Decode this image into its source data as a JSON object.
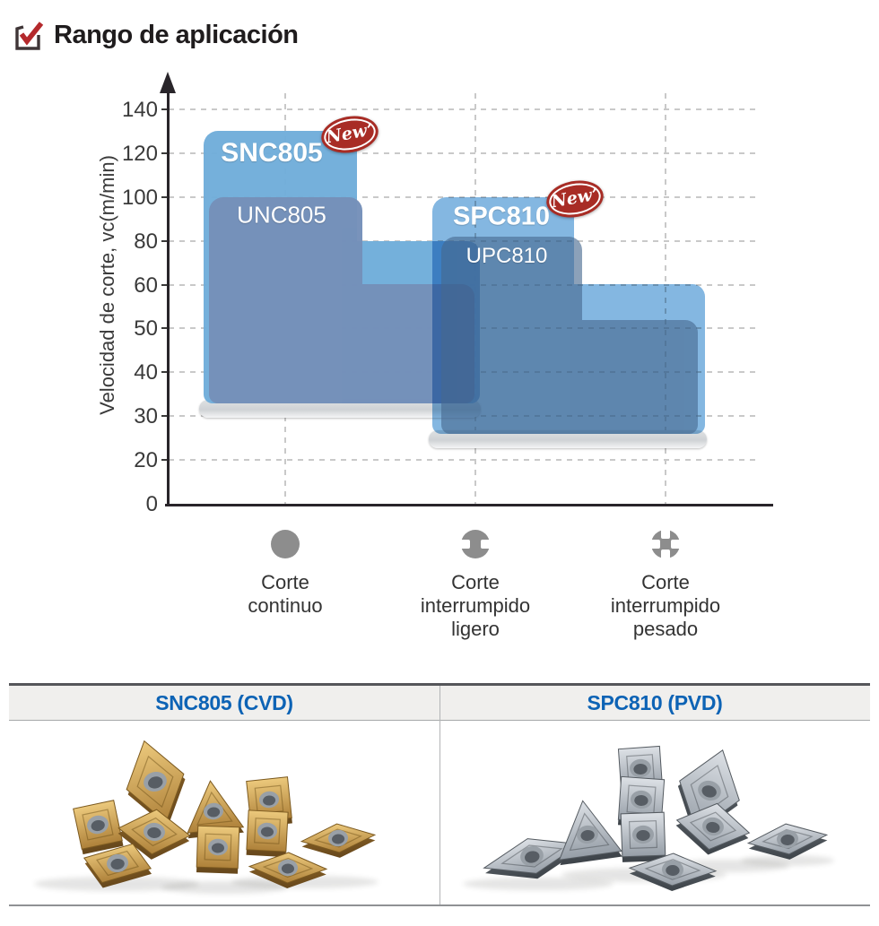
{
  "page": {
    "title": "Rango de aplicación"
  },
  "icons": {
    "title_icon": "checkbox-with-red-check-icon",
    "title_check_color": "#b4292c",
    "title_box_color": "#3f3537"
  },
  "chart_data": {
    "type": "step-range-area",
    "title": "Rango de aplicación",
    "ylabel": "Velocidad de corte, vc(m/min)",
    "yticks": [
      0,
      20,
      30,
      40,
      50,
      60,
      80,
      100,
      120,
      140
    ],
    "grid": true,
    "categories": [
      {
        "id": "continuo",
        "label": "Corte\ncontinuo",
        "icon": "continuous-cutting-icon"
      },
      {
        "id": "ligero",
        "label": "Corte\ninterrumpido\nligero",
        "icon": "light-interrupted-cutting-icon"
      },
      {
        "id": "pesado",
        "label": "Corte\ninterrumpido\npesado",
        "icon": "heavy-interrupted-cutting-icon"
      }
    ],
    "series": [
      {
        "name": "SNC805",
        "is_new": true,
        "color": "#6fadda",
        "ranges": {
          "continuo": 130,
          "ligero": 80
        },
        "bottom": 33
      },
      {
        "name": "UNC805",
        "is_new": false,
        "color": "#7590b9",
        "ranges": {
          "continuo": 100,
          "ligero": 60
        },
        "bottom": 33
      },
      {
        "name": "SPC810",
        "is_new": true,
        "color": "#84b7e1",
        "ranges": {
          "ligero": 100,
          "pesado": 60
        },
        "bottom": 26
      },
      {
        "name": "UPC810",
        "is_new": false,
        "color": "#47698f",
        "ranges": {
          "ligero": 82,
          "pesado": 52
        },
        "bottom": 26
      }
    ],
    "new_badge_text": "New’",
    "new_badge_color": "#a82c25",
    "legend_icon_color": "#8d8d8d"
  },
  "table": {
    "columns": [
      {
        "header": "SNC805 (CVD)",
        "image": "gold-cvd-inserts-photo"
      },
      {
        "header": "SPC810 (PVD)",
        "image": "silver-pvd-inserts-photo"
      }
    ],
    "header_color": "#0d63b5"
  }
}
